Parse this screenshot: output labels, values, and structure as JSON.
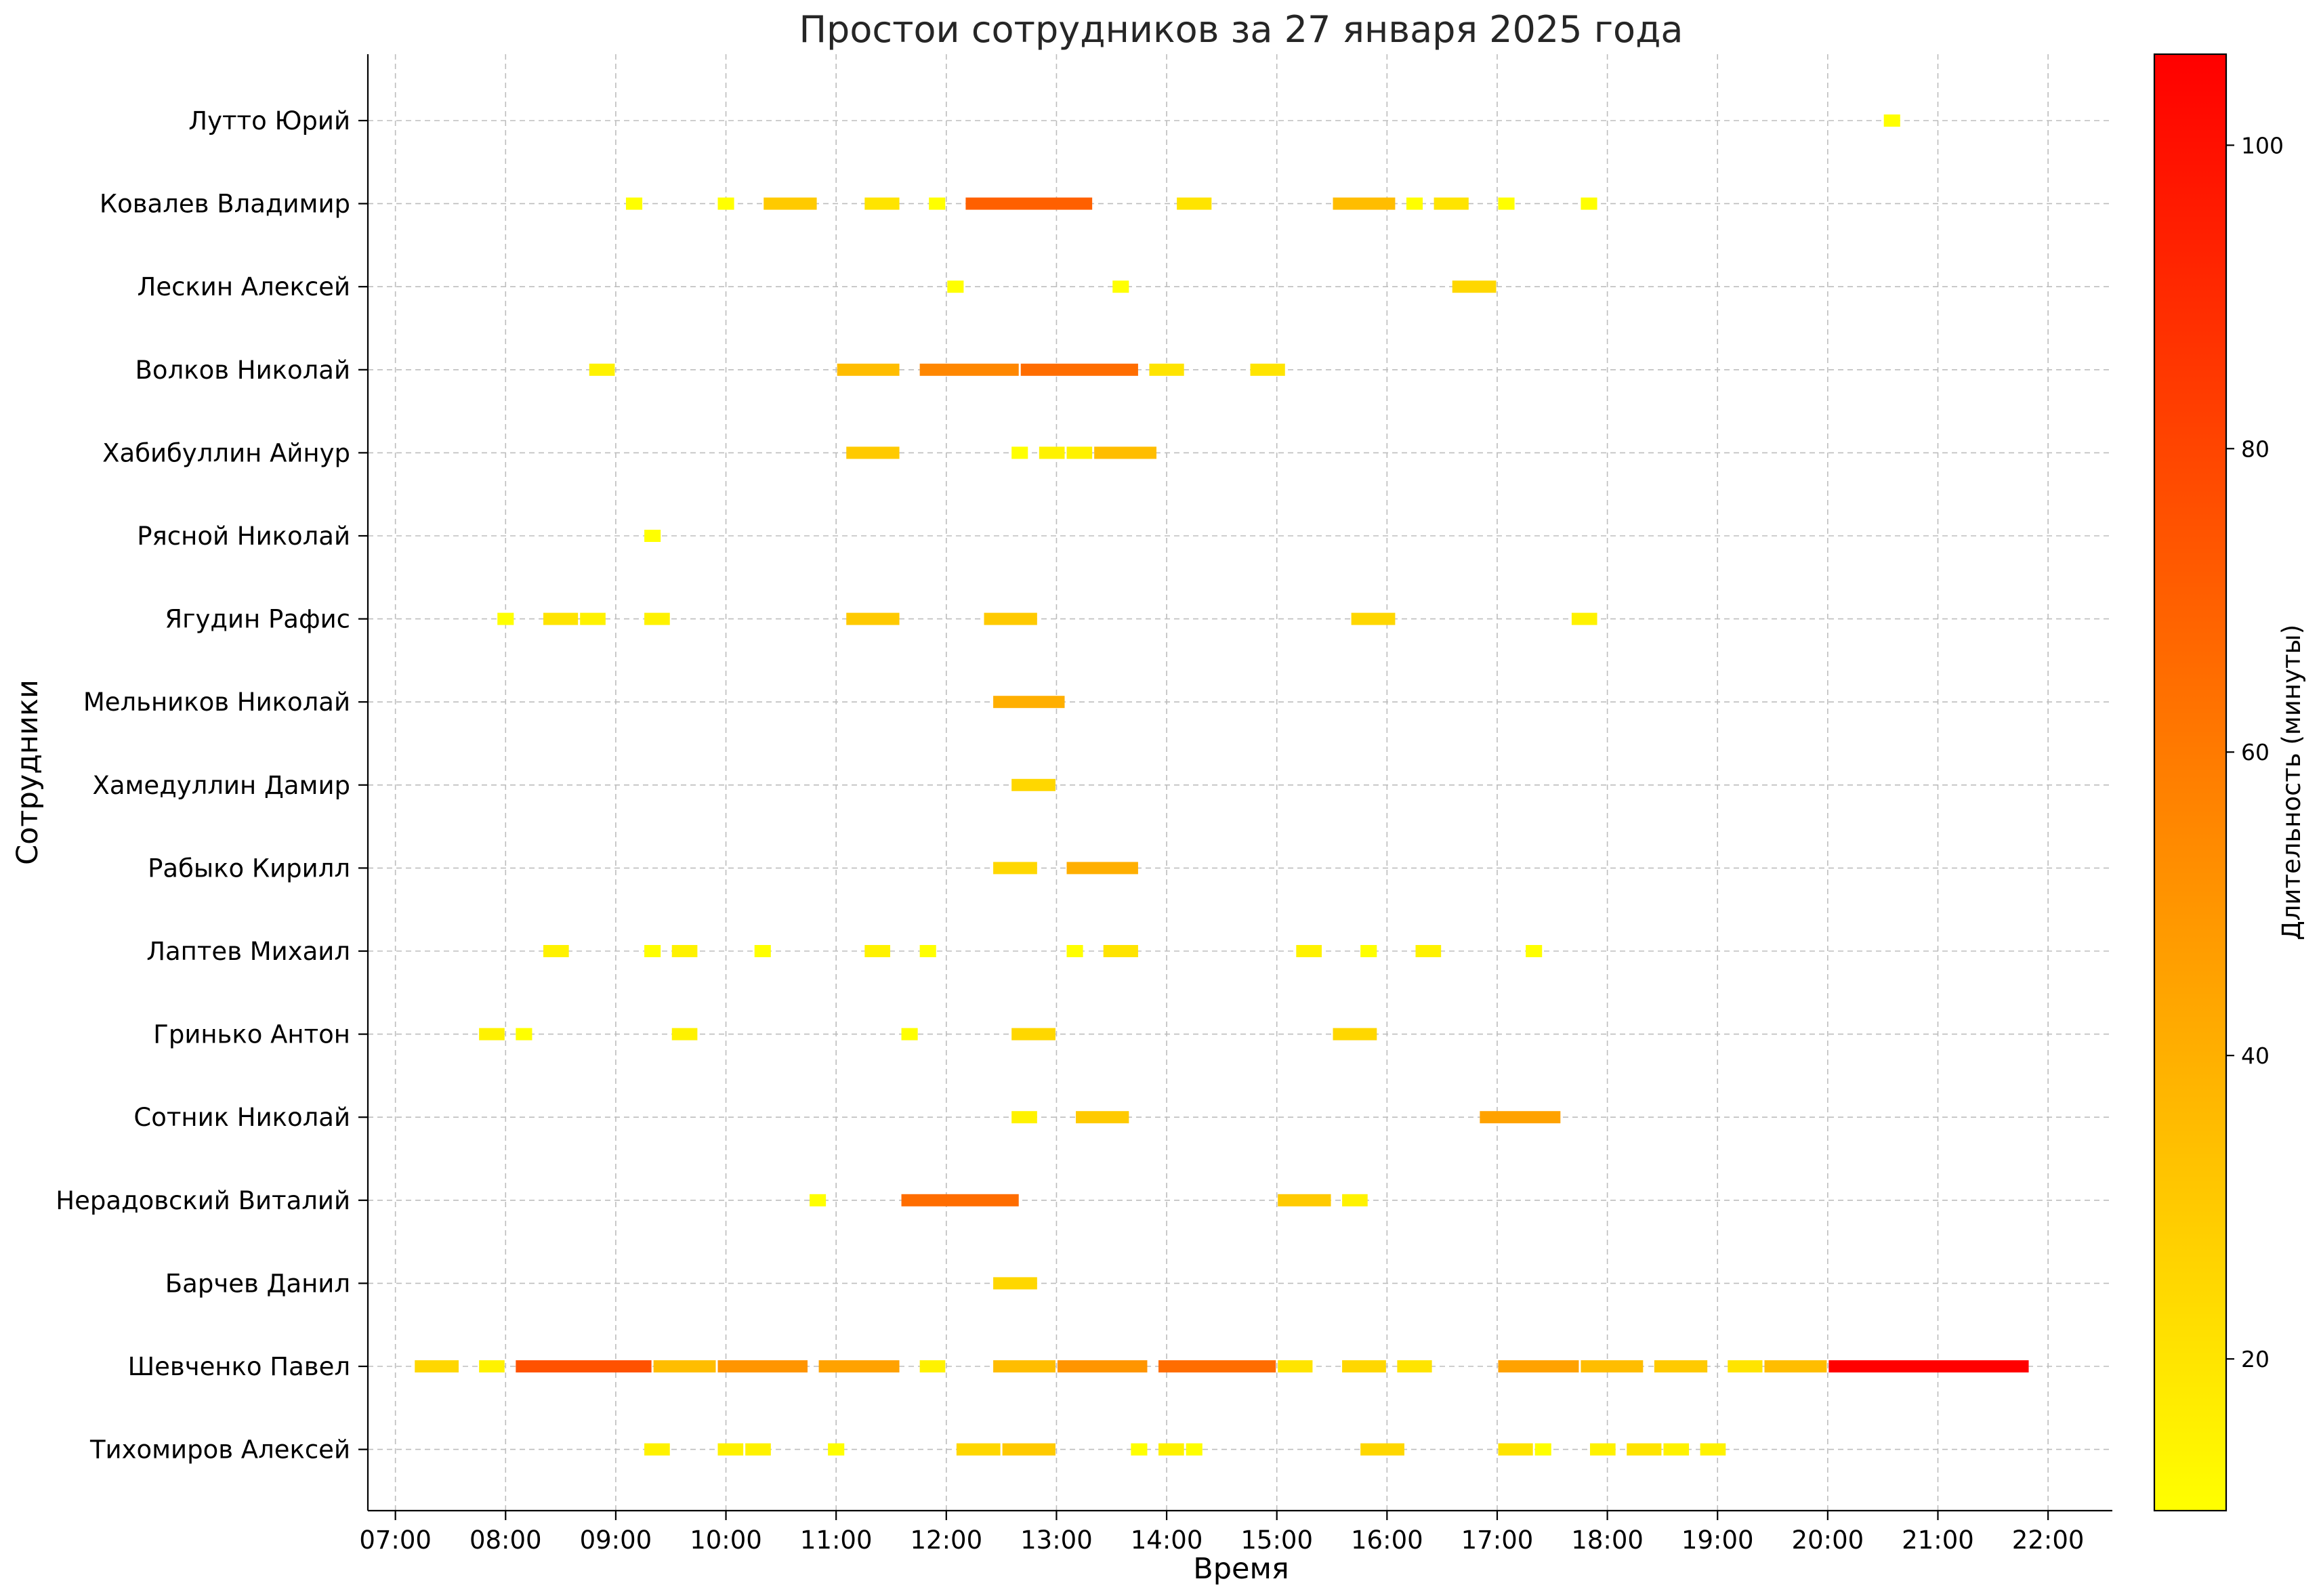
{
  "chart_data": {
    "type": "gantt",
    "title": "Простои сотрудников за 27 января 2025 года",
    "xlabel": "Время",
    "ylabel": "Сотрудники",
    "x_range": [
      "06:45",
      "22:35"
    ],
    "x_ticks": [
      "07:00",
      "08:00",
      "09:00",
      "10:00",
      "11:00",
      "12:00",
      "13:00",
      "14:00",
      "15:00",
      "16:00",
      "17:00",
      "18:00",
      "19:00",
      "20:00",
      "21:00",
      "22:00"
    ],
    "grid": true,
    "colorbar": {
      "label": "Длительность (минуты)",
      "range": [
        10,
        106
      ],
      "ticks": [
        20,
        40,
        60,
        80,
        100
      ],
      "colormap": [
        "#ffff00",
        "#ff0000"
      ]
    },
    "rows": [
      {
        "name": "Лутто Юрий",
        "intervals": [
          [
            "20:30",
            "20:40"
          ]
        ]
      },
      {
        "name": "Ковалев Владимир",
        "intervals": [
          [
            "09:05",
            "09:15"
          ],
          [
            "09:55",
            "10:05"
          ],
          [
            "10:20",
            "10:50"
          ],
          [
            "11:15",
            "11:35"
          ],
          [
            "11:50",
            "12:00"
          ],
          [
            "12:10",
            "13:20"
          ],
          [
            "14:05",
            "14:25"
          ],
          [
            "15:30",
            "16:05"
          ],
          [
            "16:10",
            "16:20"
          ],
          [
            "16:25",
            "16:45"
          ],
          [
            "17:00",
            "17:10"
          ],
          [
            "17:45",
            "17:55"
          ]
        ]
      },
      {
        "name": "Лескин Алексей",
        "intervals": [
          [
            "12:00",
            "12:10"
          ],
          [
            "13:30",
            "13:40"
          ],
          [
            "16:35",
            "17:00"
          ]
        ]
      },
      {
        "name": "Волков Николай",
        "intervals": [
          [
            "08:45",
            "09:00"
          ],
          [
            "11:00",
            "11:35"
          ],
          [
            "11:45",
            "12:40"
          ],
          [
            "12:40",
            "13:45"
          ],
          [
            "13:50",
            "14:10"
          ],
          [
            "14:45",
            "15:05"
          ]
        ]
      },
      {
        "name": "Хабибуллин Айнур",
        "intervals": [
          [
            "11:05",
            "11:35"
          ],
          [
            "12:35",
            "12:45"
          ],
          [
            "12:50",
            "13:05"
          ],
          [
            "13:05",
            "13:20"
          ],
          [
            "13:20",
            "13:55"
          ]
        ]
      },
      {
        "name": "Рясной Николай",
        "intervals": [
          [
            "09:15",
            "09:25"
          ]
        ]
      },
      {
        "name": "Ягудин Рафис",
        "intervals": [
          [
            "07:55",
            "08:05"
          ],
          [
            "08:20",
            "08:40"
          ],
          [
            "08:40",
            "08:55"
          ],
          [
            "09:15",
            "09:30"
          ],
          [
            "11:05",
            "11:35"
          ],
          [
            "12:20",
            "12:50"
          ],
          [
            "15:40",
            "16:05"
          ],
          [
            "17:40",
            "17:55"
          ]
        ]
      },
      {
        "name": "Мельников Николай",
        "intervals": [
          [
            "12:25",
            "13:05"
          ]
        ]
      },
      {
        "name": "Хамедуллин Дамир",
        "intervals": [
          [
            "12:35",
            "13:00"
          ]
        ]
      },
      {
        "name": "Рабыко Кирилл",
        "intervals": [
          [
            "12:25",
            "12:50"
          ],
          [
            "13:05",
            "13:45"
          ]
        ]
      },
      {
        "name": "Лаптев Михаил",
        "intervals": [
          [
            "08:20",
            "08:35"
          ],
          [
            "09:15",
            "09:25"
          ],
          [
            "09:30",
            "09:45"
          ],
          [
            "10:15",
            "10:25"
          ],
          [
            "11:15",
            "11:30"
          ],
          [
            "11:45",
            "11:55"
          ],
          [
            "13:05",
            "13:15"
          ],
          [
            "13:25",
            "13:45"
          ],
          [
            "15:10",
            "15:25"
          ],
          [
            "15:45",
            "15:55"
          ],
          [
            "16:15",
            "16:30"
          ],
          [
            "17:15",
            "17:25"
          ]
        ]
      },
      {
        "name": "Гринько Антон",
        "intervals": [
          [
            "07:45",
            "08:00"
          ],
          [
            "08:05",
            "08:15"
          ],
          [
            "09:30",
            "09:45"
          ],
          [
            "11:35",
            "11:45"
          ],
          [
            "12:35",
            "13:00"
          ],
          [
            "15:30",
            "15:55"
          ]
        ]
      },
      {
        "name": "Сотник Николай",
        "intervals": [
          [
            "12:35",
            "12:50"
          ],
          [
            "13:10",
            "13:40"
          ],
          [
            "16:50",
            "17:35"
          ]
        ]
      },
      {
        "name": "Нерадовский Виталий",
        "intervals": [
          [
            "10:45",
            "10:55"
          ],
          [
            "11:35",
            "12:40"
          ],
          [
            "15:00",
            "15:30"
          ],
          [
            "15:35",
            "15:50"
          ]
        ]
      },
      {
        "name": "Барчев Данил",
        "intervals": [
          [
            "12:25",
            "12:50"
          ]
        ]
      },
      {
        "name": "Шевченко Павел",
        "intervals": [
          [
            "07:10",
            "07:35"
          ],
          [
            "07:45",
            "08:00"
          ],
          [
            "08:05",
            "09:20"
          ],
          [
            "09:20",
            "09:55"
          ],
          [
            "09:55",
            "10:45"
          ],
          [
            "10:50",
            "11:35"
          ],
          [
            "11:45",
            "12:00"
          ],
          [
            "12:25",
            "13:00"
          ],
          [
            "13:00",
            "13:50"
          ],
          [
            "13:55",
            "15:00"
          ],
          [
            "15:00",
            "15:20"
          ],
          [
            "15:35",
            "16:00"
          ],
          [
            "16:05",
            "16:25"
          ],
          [
            "17:00",
            "17:45"
          ],
          [
            "17:45",
            "18:20"
          ],
          [
            "18:25",
            "18:55"
          ],
          [
            "19:05",
            "19:25"
          ],
          [
            "19:25",
            "20:00"
          ],
          [
            "20:00",
            "21:50"
          ]
        ]
      },
      {
        "name": "Тихомиров Алексей",
        "intervals": [
          [
            "09:15",
            "09:30"
          ],
          [
            "09:55",
            "10:10"
          ],
          [
            "10:10",
            "10:25"
          ],
          [
            "10:55",
            "11:05"
          ],
          [
            "12:05",
            "12:30"
          ],
          [
            "12:30",
            "13:00"
          ],
          [
            "13:40",
            "13:50"
          ],
          [
            "13:55",
            "14:10"
          ],
          [
            "14:10",
            "14:20"
          ],
          [
            "15:45",
            "16:10"
          ],
          [
            "17:00",
            "17:20"
          ],
          [
            "17:20",
            "17:30"
          ],
          [
            "17:50",
            "18:05"
          ],
          [
            "18:10",
            "18:30"
          ],
          [
            "18:30",
            "18:45"
          ],
          [
            "18:50",
            "19:05"
          ]
        ]
      }
    ]
  }
}
